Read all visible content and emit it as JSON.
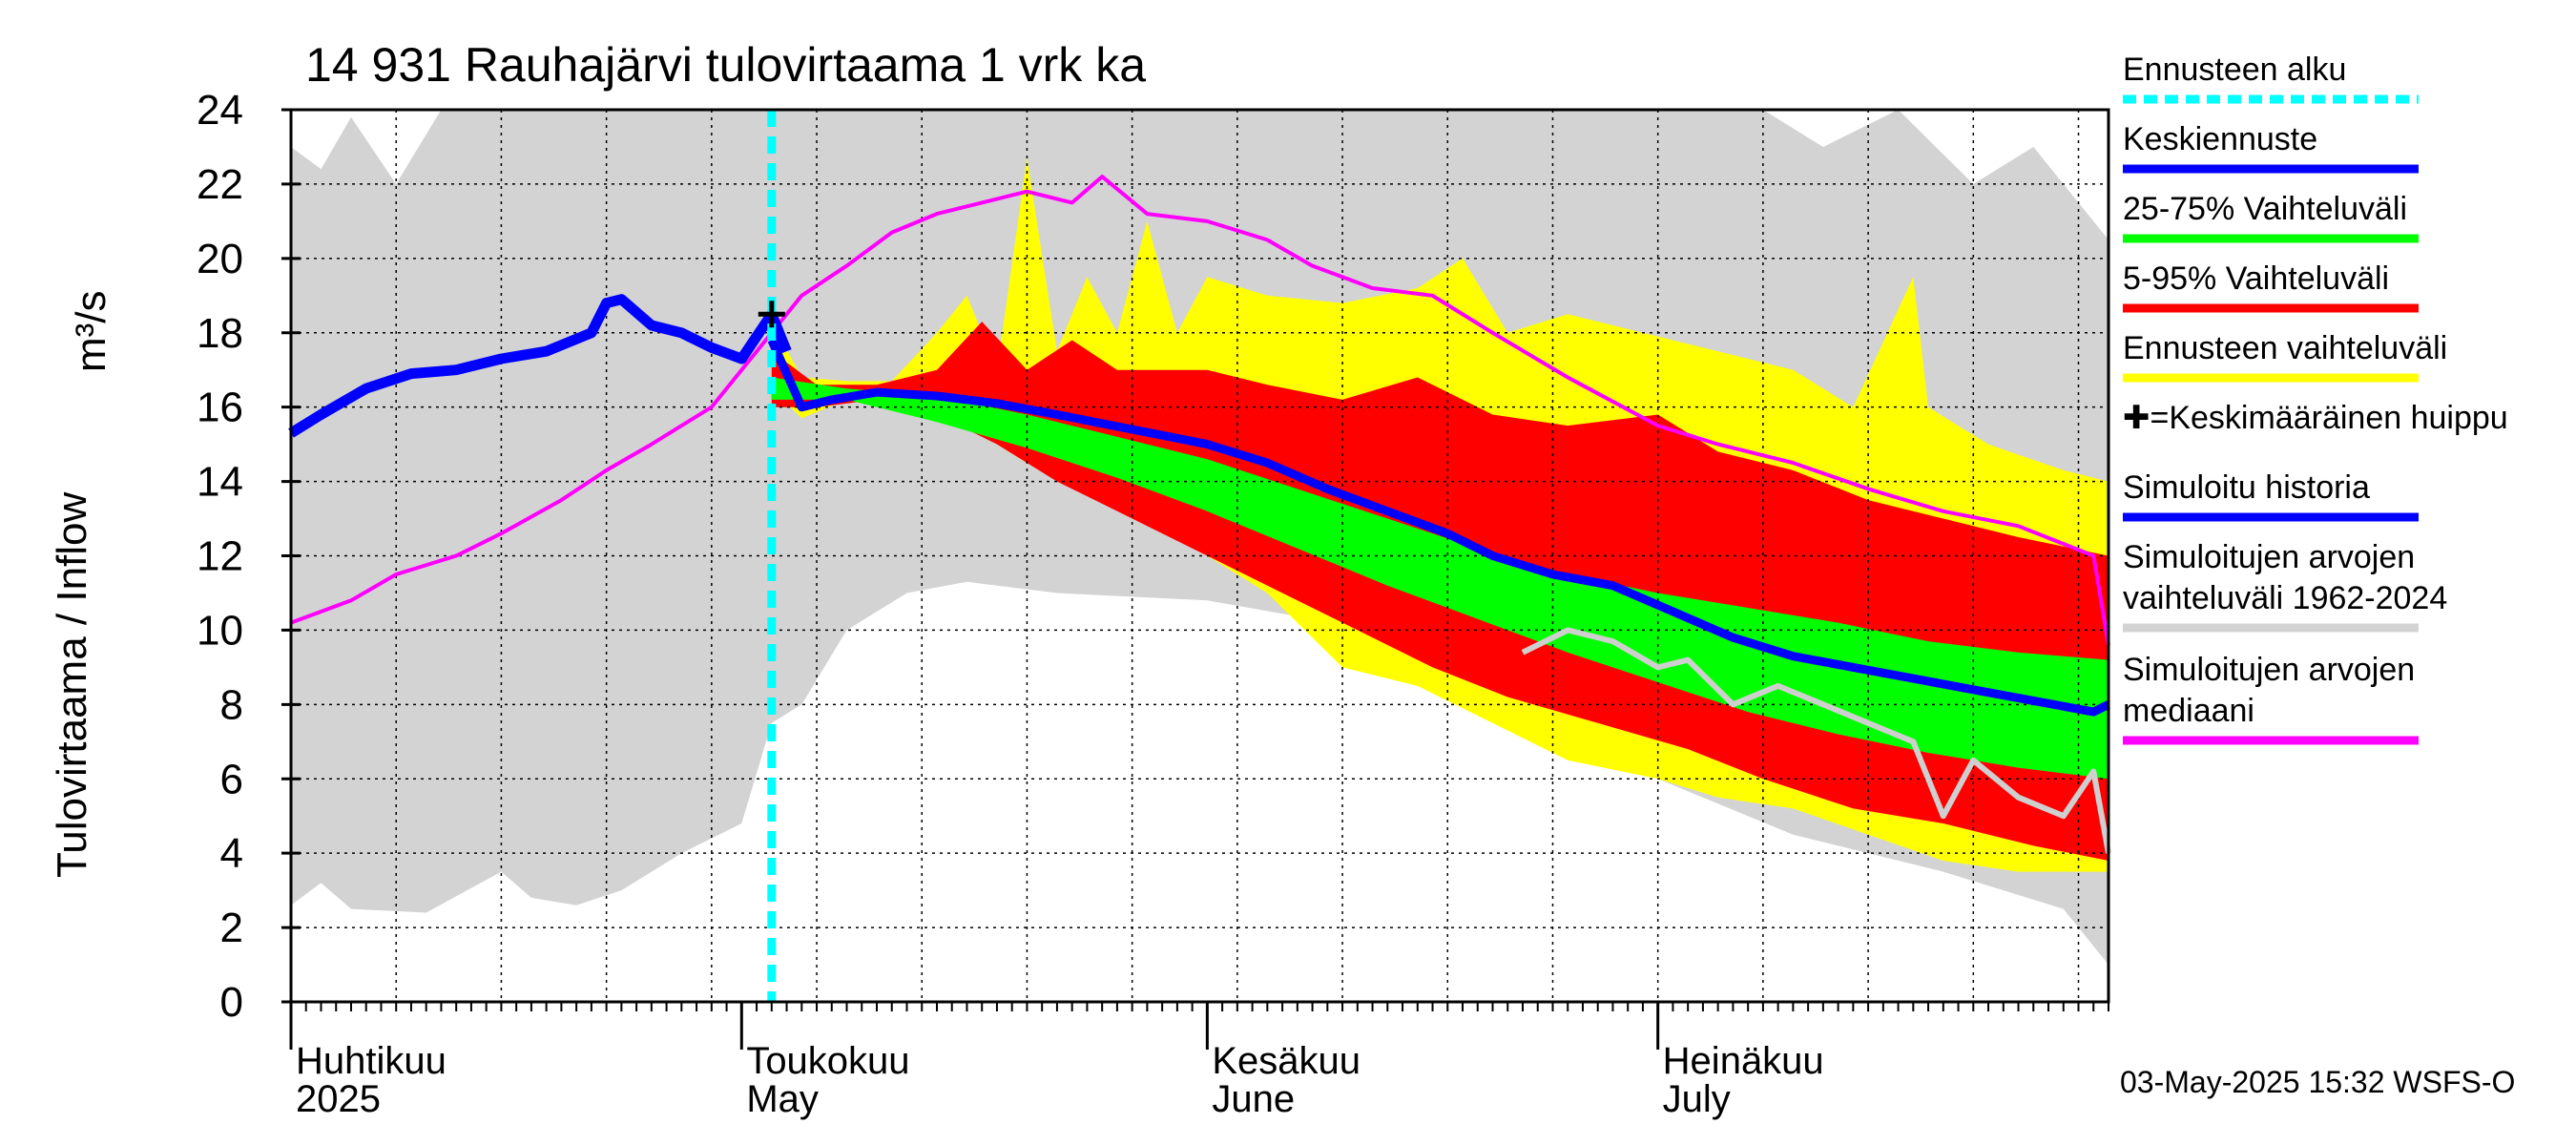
{
  "chart_data": {
    "type": "area",
    "title": "14 931 Rauhajärvi tulovirtaama 1 vrk ka",
    "ylabel_left": "Tulovirtaama / Inflow",
    "ylabel_unit": "m³/s",
    "ylim": [
      0,
      24
    ],
    "yticks": [
      "0",
      "2",
      "4",
      "6",
      "8",
      "10",
      "12",
      "14",
      "16",
      "18",
      "20",
      "22",
      "24"
    ],
    "grid": true,
    "x_start": "2025-04-01",
    "x_end": "2025-07-31",
    "month_labels": [
      {
        "fi": "Huhtikuu",
        "en": "2025",
        "date": "2025-04-01"
      },
      {
        "fi": "Toukokuu",
        "en": "May",
        "date": "2025-05-01"
      },
      {
        "fi": "Kesäkuu",
        "en": "June",
        "date": "2025-06-01"
      },
      {
        "fi": "Heinäkuu",
        "en": "July",
        "date": "2025-07-01"
      }
    ],
    "forecast_start": "2025-05-03",
    "mean_peak": {
      "date": "2025-05-03",
      "value": 18.5
    },
    "series": [
      {
        "name": "Simuloitujen arvojen vaihteluväli 1962-2024",
        "color": "#d3d3d3",
        "band_upper": [
          [
            "2025-04-01",
            23.0
          ],
          [
            "2025-04-03",
            22.4
          ],
          [
            "2025-04-05",
            23.8
          ],
          [
            "2025-04-08",
            22.0
          ],
          [
            "2025-04-11",
            24.0
          ],
          [
            "2025-05-01",
            24.0
          ],
          [
            "2025-05-20",
            24.0
          ],
          [
            "2025-06-20",
            24.0
          ],
          [
            "2025-07-08",
            24.0
          ],
          [
            "2025-07-12",
            23.0
          ],
          [
            "2025-07-17",
            24.0
          ],
          [
            "2025-07-22",
            22.0
          ],
          [
            "2025-07-26",
            23.0
          ],
          [
            "2025-07-31",
            20.5
          ]
        ],
        "band_lower": [
          [
            "2025-04-01",
            2.6
          ],
          [
            "2025-04-03",
            3.2
          ],
          [
            "2025-04-05",
            2.5
          ],
          [
            "2025-04-10",
            2.4
          ],
          [
            "2025-04-15",
            3.5
          ],
          [
            "2025-04-17",
            2.8
          ],
          [
            "2025-04-20",
            2.6
          ],
          [
            "2025-04-23",
            3.0
          ],
          [
            "2025-04-27",
            4.0
          ],
          [
            "2025-05-01",
            4.8
          ],
          [
            "2025-05-03",
            7.5
          ],
          [
            "2025-05-05",
            8.0
          ],
          [
            "2025-05-08",
            10.0
          ],
          [
            "2025-05-12",
            11.0
          ],
          [
            "2025-05-16",
            11.3
          ],
          [
            "2025-05-22",
            11.0
          ],
          [
            "2025-06-01",
            10.8
          ],
          [
            "2025-06-08",
            10.3
          ],
          [
            "2025-06-15",
            9.5
          ],
          [
            "2025-06-22",
            8.0
          ],
          [
            "2025-07-01",
            6.0
          ],
          [
            "2025-07-10",
            4.5
          ],
          [
            "2025-07-20",
            3.5
          ],
          [
            "2025-07-28",
            2.5
          ],
          [
            "2025-07-31",
            1.0
          ]
        ]
      },
      {
        "name": "Ennusteen vaihteluväli",
        "color": "#ffff00",
        "band_upper": [
          [
            "2025-05-03",
            18.3
          ],
          [
            "2025-05-05",
            16.8
          ],
          [
            "2025-05-08",
            16.7
          ],
          [
            "2025-05-11",
            16.7
          ],
          [
            "2025-05-14",
            18.0
          ],
          [
            "2025-05-16",
            19.0
          ],
          [
            "2025-05-18",
            17.0
          ],
          [
            "2025-05-20",
            22.7
          ],
          [
            "2025-05-22",
            17.5
          ],
          [
            "2025-05-24",
            19.5
          ],
          [
            "2025-05-26",
            18.0
          ],
          [
            "2025-05-28",
            21.0
          ],
          [
            "2025-05-30",
            18.0
          ],
          [
            "2025-06-01",
            19.5
          ],
          [
            "2025-06-05",
            19.0
          ],
          [
            "2025-06-10",
            18.8
          ],
          [
            "2025-06-15",
            19.2
          ],
          [
            "2025-06-18",
            20.0
          ],
          [
            "2025-06-21",
            18.0
          ],
          [
            "2025-06-25",
            18.5
          ],
          [
            "2025-06-30",
            18.0
          ],
          [
            "2025-07-05",
            17.5
          ],
          [
            "2025-07-10",
            17.0
          ],
          [
            "2025-07-14",
            16.0
          ],
          [
            "2025-07-18",
            19.5
          ],
          [
            "2025-07-19",
            16.0
          ],
          [
            "2025-07-23",
            15.0
          ],
          [
            "2025-07-28",
            14.3
          ],
          [
            "2025-07-31",
            14.0
          ]
        ],
        "band_lower": [
          [
            "2025-05-03",
            16.5
          ],
          [
            "2025-05-05",
            15.7
          ],
          [
            "2025-05-08",
            16.2
          ],
          [
            "2025-05-12",
            16.0
          ],
          [
            "2025-05-16",
            15.5
          ],
          [
            "2025-05-20",
            14.5
          ],
          [
            "2025-05-25",
            13.5
          ],
          [
            "2025-06-01",
            12.0
          ],
          [
            "2025-06-05",
            11.0
          ],
          [
            "2025-06-10",
            9.0
          ],
          [
            "2025-06-15",
            8.5
          ],
          [
            "2025-06-20",
            7.5
          ],
          [
            "2025-06-25",
            6.5
          ],
          [
            "2025-07-01",
            6.0
          ],
          [
            "2025-07-05",
            5.5
          ],
          [
            "2025-07-10",
            5.2
          ],
          [
            "2025-07-15",
            4.5
          ],
          [
            "2025-07-20",
            3.8
          ],
          [
            "2025-07-25",
            3.5
          ],
          [
            "2025-07-31",
            3.5
          ]
        ]
      },
      {
        "name": "5-95% Vaihteluväli",
        "color": "#ff0000",
        "band_upper": [
          [
            "2025-05-03",
            17.5
          ],
          [
            "2025-05-06",
            16.6
          ],
          [
            "2025-05-10",
            16.6
          ],
          [
            "2025-05-14",
            17.0
          ],
          [
            "2025-05-17",
            18.3
          ],
          [
            "2025-05-20",
            17.0
          ],
          [
            "2025-05-23",
            17.8
          ],
          [
            "2025-05-26",
            17.0
          ],
          [
            "2025-06-01",
            17.0
          ],
          [
            "2025-06-05",
            16.6
          ],
          [
            "2025-06-10",
            16.2
          ],
          [
            "2025-06-15",
            16.8
          ],
          [
            "2025-06-20",
            15.8
          ],
          [
            "2025-06-25",
            15.5
          ],
          [
            "2025-07-01",
            15.8
          ],
          [
            "2025-07-05",
            14.8
          ],
          [
            "2025-07-10",
            14.3
          ],
          [
            "2025-07-15",
            13.5
          ],
          [
            "2025-07-20",
            13.0
          ],
          [
            "2025-07-25",
            12.5
          ],
          [
            "2025-07-31",
            12.0
          ]
        ],
        "band_lower": [
          [
            "2025-05-03",
            16.0
          ],
          [
            "2025-05-06",
            16.0
          ],
          [
            "2025-05-10",
            16.2
          ],
          [
            "2025-05-14",
            15.8
          ],
          [
            "2025-05-18",
            15.0
          ],
          [
            "2025-05-22",
            14.0
          ],
          [
            "2025-05-27",
            13.0
          ],
          [
            "2025-06-01",
            12.0
          ],
          [
            "2025-06-06",
            11.0
          ],
          [
            "2025-06-11",
            10.0
          ],
          [
            "2025-06-16",
            9.0
          ],
          [
            "2025-06-21",
            8.2
          ],
          [
            "2025-06-27",
            7.5
          ],
          [
            "2025-07-03",
            6.8
          ],
          [
            "2025-07-08",
            6.0
          ],
          [
            "2025-07-14",
            5.2
          ],
          [
            "2025-07-20",
            4.8
          ],
          [
            "2025-07-26",
            4.2
          ],
          [
            "2025-07-31",
            3.8
          ]
        ]
      },
      {
        "name": "25-75% Vaihteluväli",
        "color": "#00ff00",
        "band_upper": [
          [
            "2025-05-03",
            16.8
          ],
          [
            "2025-05-08",
            16.5
          ],
          [
            "2025-05-14",
            16.3
          ],
          [
            "2025-05-20",
            15.8
          ],
          [
            "2025-05-26",
            15.2
          ],
          [
            "2025-06-01",
            14.6
          ],
          [
            "2025-06-07",
            13.8
          ],
          [
            "2025-06-13",
            13.0
          ],
          [
            "2025-06-19",
            12.2
          ],
          [
            "2025-06-25",
            11.5
          ],
          [
            "2025-07-01",
            11.0
          ],
          [
            "2025-07-07",
            10.6
          ],
          [
            "2025-07-13",
            10.2
          ],
          [
            "2025-07-19",
            9.7
          ],
          [
            "2025-07-25",
            9.4
          ],
          [
            "2025-07-31",
            9.2
          ]
        ],
        "band_lower": [
          [
            "2025-05-03",
            16.2
          ],
          [
            "2025-05-08",
            16.2
          ],
          [
            "2025-05-14",
            15.6
          ],
          [
            "2025-05-20",
            14.9
          ],
          [
            "2025-05-26",
            14.1
          ],
          [
            "2025-06-01",
            13.2
          ],
          [
            "2025-06-07",
            12.2
          ],
          [
            "2025-06-13",
            11.2
          ],
          [
            "2025-06-19",
            10.3
          ],
          [
            "2025-06-25",
            9.4
          ],
          [
            "2025-07-01",
            8.6
          ],
          [
            "2025-07-07",
            7.8
          ],
          [
            "2025-07-13",
            7.2
          ],
          [
            "2025-07-19",
            6.7
          ],
          [
            "2025-07-25",
            6.3
          ],
          [
            "2025-07-31",
            6.0
          ]
        ]
      },
      {
        "name": "Simuloitujen arvojen mediaani",
        "color": "#ff00ff",
        "line": [
          [
            "2025-04-01",
            10.2
          ],
          [
            "2025-04-05",
            10.8
          ],
          [
            "2025-04-08",
            11.5
          ],
          [
            "2025-04-12",
            12.0
          ],
          [
            "2025-04-15",
            12.6
          ],
          [
            "2025-04-19",
            13.5
          ],
          [
            "2025-04-22",
            14.3
          ],
          [
            "2025-04-25",
            15.0
          ],
          [
            "2025-04-29",
            16.0
          ],
          [
            "2025-05-02",
            17.5
          ],
          [
            "2025-05-05",
            19.0
          ],
          [
            "2025-05-08",
            19.8
          ],
          [
            "2025-05-11",
            20.7
          ],
          [
            "2025-05-14",
            21.2
          ],
          [
            "2025-05-17",
            21.5
          ],
          [
            "2025-05-20",
            21.8
          ],
          [
            "2025-05-23",
            21.5
          ],
          [
            "2025-05-25",
            22.2
          ],
          [
            "2025-05-28",
            21.2
          ],
          [
            "2025-06-01",
            21.0
          ],
          [
            "2025-06-05",
            20.5
          ],
          [
            "2025-06-08",
            19.8
          ],
          [
            "2025-06-12",
            19.2
          ],
          [
            "2025-06-16",
            19.0
          ],
          [
            "2025-06-20",
            18.0
          ],
          [
            "2025-06-25",
            16.8
          ],
          [
            "2025-07-01",
            15.5
          ],
          [
            "2025-07-05",
            15.0
          ],
          [
            "2025-07-10",
            14.5
          ],
          [
            "2025-07-15",
            13.8
          ],
          [
            "2025-07-20",
            13.2
          ],
          [
            "2025-07-25",
            12.8
          ],
          [
            "2025-07-30",
            12.0
          ],
          [
            "2025-07-31",
            9.6
          ]
        ]
      },
      {
        "name": "Simuloitujen median grey",
        "color": "#cfcfcf",
        "line": [
          [
            "2025-06-22",
            9.4
          ],
          [
            "2025-06-25",
            10.0
          ],
          [
            "2025-06-28",
            9.7
          ],
          [
            "2025-07-01",
            9.0
          ],
          [
            "2025-07-03",
            9.2
          ],
          [
            "2025-07-06",
            8.0
          ],
          [
            "2025-07-09",
            8.5
          ],
          [
            "2025-07-12",
            8.0
          ],
          [
            "2025-07-15",
            7.5
          ],
          [
            "2025-07-18",
            7.0
          ],
          [
            "2025-07-20",
            5.0
          ],
          [
            "2025-07-22",
            6.5
          ],
          [
            "2025-07-25",
            5.5
          ],
          [
            "2025-07-28",
            5.0
          ],
          [
            "2025-07-30",
            6.2
          ],
          [
            "2025-07-31",
            4.0
          ]
        ]
      },
      {
        "name": "Simuloitu historia",
        "color": "#0000ff",
        "line": [
          [
            "2025-04-01",
            15.3
          ],
          [
            "2025-04-03",
            15.8
          ],
          [
            "2025-04-06",
            16.5
          ],
          [
            "2025-04-09",
            16.9
          ],
          [
            "2025-04-12",
            17.0
          ],
          [
            "2025-04-15",
            17.3
          ],
          [
            "2025-04-18",
            17.5
          ],
          [
            "2025-04-21",
            18.0
          ],
          [
            "2025-04-22",
            18.8
          ],
          [
            "2025-04-23",
            18.9
          ],
          [
            "2025-04-25",
            18.2
          ],
          [
            "2025-04-27",
            18.0
          ],
          [
            "2025-04-29",
            17.6
          ],
          [
            "2025-05-01",
            17.3
          ],
          [
            "2025-05-03",
            18.5
          ],
          [
            "2025-05-04",
            17.5
          ]
        ]
      },
      {
        "name": "Keskiennuste",
        "color": "#0000ff",
        "line": [
          [
            "2025-05-03",
            17.8
          ],
          [
            "2025-05-05",
            16.0
          ],
          [
            "2025-05-07",
            16.2
          ],
          [
            "2025-05-10",
            16.4
          ],
          [
            "2025-05-14",
            16.3
          ],
          [
            "2025-05-18",
            16.1
          ],
          [
            "2025-05-22",
            15.8
          ],
          [
            "2025-05-27",
            15.4
          ],
          [
            "2025-06-01",
            15.0
          ],
          [
            "2025-06-05",
            14.5
          ],
          [
            "2025-06-09",
            13.8
          ],
          [
            "2025-06-13",
            13.2
          ],
          [
            "2025-06-17",
            12.6
          ],
          [
            "2025-06-20",
            12.0
          ],
          [
            "2025-06-24",
            11.5
          ],
          [
            "2025-06-28",
            11.2
          ],
          [
            "2025-07-02",
            10.5
          ],
          [
            "2025-07-06",
            9.8
          ],
          [
            "2025-07-10",
            9.3
          ],
          [
            "2025-07-14",
            9.0
          ],
          [
            "2025-07-18",
            8.7
          ],
          [
            "2025-07-22",
            8.4
          ],
          [
            "2025-07-26",
            8.1
          ],
          [
            "2025-07-30",
            7.8
          ],
          [
            "2025-07-31",
            8.0
          ]
        ]
      }
    ],
    "legend": [
      {
        "label": "Ennusteen alku",
        "color": "#00ffff",
        "dashed": true
      },
      {
        "label": "Keskiennuste",
        "color": "#0000ff"
      },
      {
        "label": "25-75% Vaihteluväli",
        "color": "#00ff00"
      },
      {
        "label": "5-95% Vaihteluväli",
        "color": "#ff0000"
      },
      {
        "label": "Ennusteen vaihteluväli",
        "color": "#ffff00"
      },
      {
        "label": "✚=Keskimääräinen huippu",
        "color": null
      },
      {
        "label": "Simuloitu historia",
        "color": "#0000ff"
      },
      {
        "label": "Simuloitujen arvojen vaihteluväli 1962-2024",
        "color": "#d3d3d3"
      },
      {
        "label": "Simuloitujen arvojen mediaani",
        "color": "#ff00ff"
      }
    ],
    "timestamp": "03-May-2025 15:32 WSFS-O"
  }
}
